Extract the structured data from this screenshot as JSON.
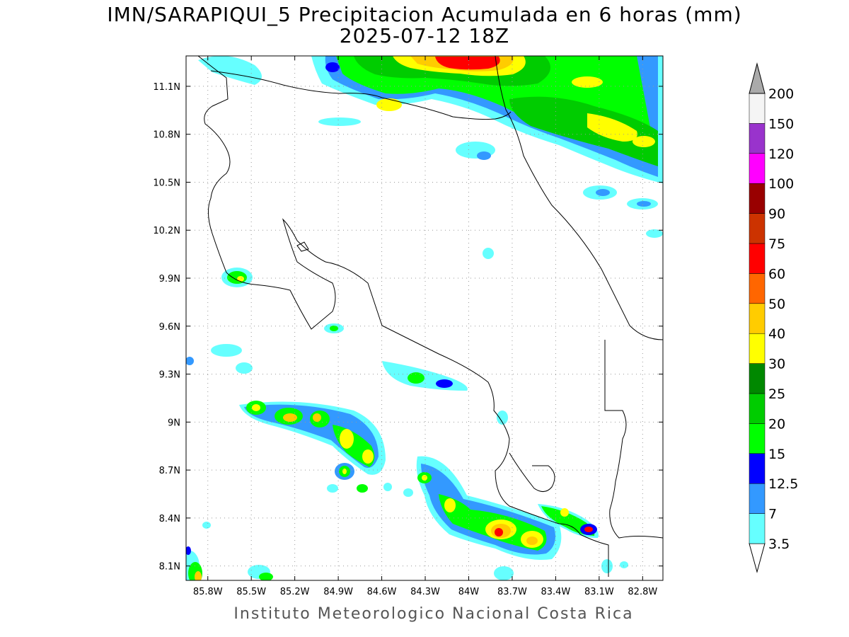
{
  "title": {
    "line1": "IMN/SARAPIQUI_5 Precipitacion Acumulada en 6 horas (mm)",
    "line2": "2025-07-12 18Z"
  },
  "footer": "Instituto Meteorologico Nacional Costa Rica",
  "map": {
    "lon_range": [
      -85.95,
      -82.66
    ],
    "lat_range": [
      8.01,
      11.29
    ],
    "lon_ticks": [
      {
        "value": -85.8,
        "label": "85.8W"
      },
      {
        "value": -85.5,
        "label": "85.5W"
      },
      {
        "value": -85.2,
        "label": "85.2W"
      },
      {
        "value": -84.9,
        "label": "84.9W"
      },
      {
        "value": -84.6,
        "label": "84.6W"
      },
      {
        "value": -84.3,
        "label": "84.3W"
      },
      {
        "value": -84.0,
        "label": "84W"
      },
      {
        "value": -83.7,
        "label": "83.7W"
      },
      {
        "value": -83.4,
        "label": "83.4W"
      },
      {
        "value": -83.1,
        "label": "83.1W"
      },
      {
        "value": -82.8,
        "label": "82.8W"
      }
    ],
    "lat_ticks": [
      {
        "value": 8.1,
        "label": "8.1N"
      },
      {
        "value": 8.4,
        "label": "8.4N"
      },
      {
        "value": 8.7,
        "label": "8.7N"
      },
      {
        "value": 9.0,
        "label": "9N"
      },
      {
        "value": 9.3,
        "label": "9.3N"
      },
      {
        "value": 9.6,
        "label": "9.6N"
      },
      {
        "value": 9.9,
        "label": "9.9N"
      },
      {
        "value": 10.2,
        "label": "10.2N"
      },
      {
        "value": 10.5,
        "label": "10.5N"
      },
      {
        "value": 10.8,
        "label": "10.8N"
      },
      {
        "value": 11.1,
        "label": "11.1N"
      }
    ],
    "grid": "dotted"
  },
  "colorbar": {
    "levels": [
      "3.5",
      "7",
      "12.5",
      "15",
      "20",
      "25",
      "30",
      "40",
      "50",
      "60",
      "75",
      "90",
      "100",
      "120",
      "150",
      "200"
    ],
    "colors": [
      "#ffffff",
      "#66ffff",
      "#3399ff",
      "#0000ff",
      "#00ff00",
      "#00cc00",
      "#008800",
      "#ffff00",
      "#ffcc00",
      "#ff6600",
      "#ff0000",
      "#cc3300",
      "#990000",
      "#ff00ff",
      "#9933cc",
      "#f5f5f5",
      "#aaaaaa"
    ]
  }
}
